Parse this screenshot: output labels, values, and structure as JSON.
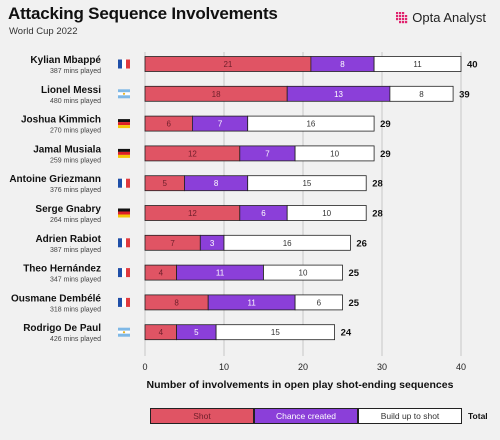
{
  "header": {
    "title": "Attacking Sequence Involvements",
    "subtitle": "World Cup 2022",
    "brand": "Opta Analyst"
  },
  "colors": {
    "shot": "#e05464",
    "chance": "#8b3fd9",
    "buildup": "#ffffff",
    "outline": "#222222",
    "grid": "#c8c8c8",
    "background": "#f1f1f1",
    "brand_pink": "#e0226e"
  },
  "chart_data": {
    "type": "bar",
    "orientation": "horizontal",
    "stacked": true,
    "xlabel": "Number of involvements in open play shot-ending sequences",
    "xlim": [
      0,
      40
    ],
    "xticks": [
      0,
      10,
      20,
      30,
      40
    ],
    "grid": true,
    "legend_position": "bottom",
    "players": [
      {
        "name": "Kylian Mbappé",
        "minutes": "387 mins played",
        "flag": "france-flag-icon"
      },
      {
        "name": "Lionel Messi",
        "minutes": "480 mins played",
        "flag": "argentina-flag-icon"
      },
      {
        "name": "Joshua Kimmich",
        "minutes": "270 mins played",
        "flag": "germany-flag-icon"
      },
      {
        "name": "Jamal Musiala",
        "minutes": "259 mins played",
        "flag": "germany-flag-icon"
      },
      {
        "name": "Antoine Griezmann",
        "minutes": "376 mins played",
        "flag": "france-flag-icon"
      },
      {
        "name": "Serge Gnabry",
        "minutes": "264 mins played",
        "flag": "germany-flag-icon"
      },
      {
        "name": "Adrien Rabiot",
        "minutes": "387 mins played",
        "flag": "france-flag-icon"
      },
      {
        "name": "Theo Hernández",
        "minutes": "347 mins played",
        "flag": "france-flag-icon"
      },
      {
        "name": "Ousmane Dembélé",
        "minutes": "318 mins played",
        "flag": "france-flag-icon"
      },
      {
        "name": "Rodrigo De Paul",
        "minutes": "426 mins played",
        "flag": "argentina-flag-icon"
      }
    ],
    "series": [
      {
        "name": "Shot",
        "values": [
          21,
          18,
          6,
          12,
          5,
          12,
          7,
          4,
          8,
          4
        ]
      },
      {
        "name": "Chance created",
        "values": [
          8,
          13,
          7,
          7,
          8,
          6,
          3,
          11,
          11,
          5
        ]
      },
      {
        "name": "Build up to shot",
        "values": [
          11,
          8,
          16,
          10,
          15,
          10,
          16,
          10,
          6,
          15
        ]
      }
    ],
    "totals": [
      40,
      39,
      29,
      29,
      28,
      28,
      26,
      25,
      25,
      24
    ],
    "total_label": "Total"
  }
}
